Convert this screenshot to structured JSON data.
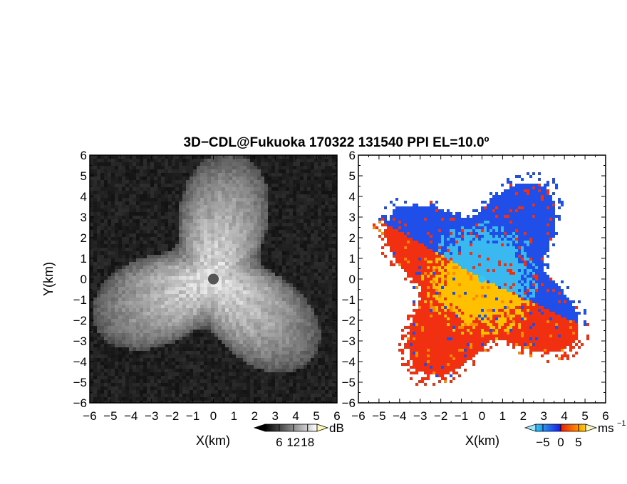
{
  "title": "3D−CDL@Fukuoka 170322 131540 PPI EL=10.0º",
  "chart_data": [
    {
      "type": "heatmap",
      "panel": "reflectivity",
      "xlabel": "X(km)",
      "ylabel": "Y(km)",
      "xlim": [
        -6,
        6
      ],
      "ylim": [
        -6,
        6
      ],
      "xticks": [
        "−6",
        "−5",
        "−4",
        "−3",
        "−2",
        "−1",
        "0",
        "1",
        "2",
        "3",
        "4",
        "5",
        "6"
      ],
      "yticks": [
        "6",
        "5",
        "4",
        "3",
        "2",
        "1",
        "0",
        "−1",
        "−2",
        "−3",
        "−4",
        "−5",
        "−6"
      ],
      "colorbar": {
        "unit": "dB",
        "ticks": [
          6,
          12,
          18
        ],
        "tick_labels": [
          "6",
          "12",
          "18"
        ],
        "range": [
          0,
          22
        ],
        "colors": [
          "#000000",
          "#ffffff"
        ]
      },
      "echo_radius_km": 4.3,
      "blind_radius_km": 0.2
    },
    {
      "type": "heatmap",
      "panel": "doppler_velocity",
      "xlabel": "X(km)",
      "xlim": [
        -6,
        6
      ],
      "ylim": [
        -6,
        6
      ],
      "xticks": [
        "−6",
        "−5",
        "−4",
        "−3",
        "−2",
        "−1",
        "0",
        "1",
        "2",
        "3",
        "4",
        "5",
        "6"
      ],
      "yticks": [
        "6",
        "5",
        "4",
        "3",
        "2",
        "1",
        "0",
        "−1",
        "−2",
        "−3",
        "−4",
        "−5",
        "−6"
      ],
      "colorbar": {
        "unit": "ms",
        "unit_exponent": "−1",
        "ticks": [
          -5,
          0,
          5
        ],
        "tick_labels": [
          "−5",
          "0",
          "5"
        ],
        "range": [
          -7,
          7
        ],
        "colors": [
          "#35c6f2",
          "#1f5ff0",
          "#1a1ae0",
          "#e02010",
          "#ff7000",
          "#ffd000"
        ]
      },
      "echo_radius_km": 4.2,
      "approaching_sector_deg": [
        -25,
        150
      ],
      "colors": {
        "approaching_near": "#3ab8f0",
        "approaching_far": "#1f4fe8",
        "receding_near": "#ffc000",
        "receding_far": "#f03010"
      }
    }
  ]
}
